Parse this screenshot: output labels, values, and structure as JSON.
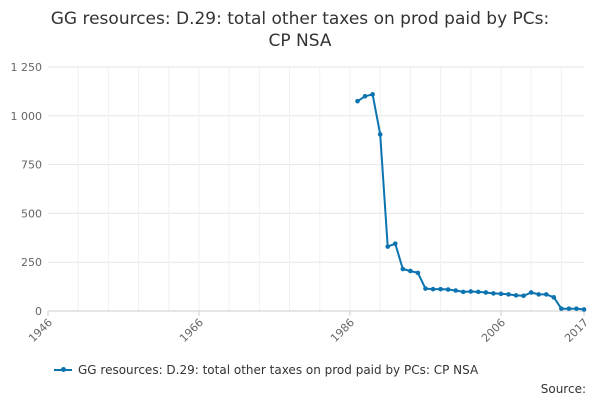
{
  "chart_data": {
    "type": "line",
    "title_line1": "GG resources: D.29: total other taxes on prod paid by PCs:",
    "title_line2": "CP NSA",
    "xlabel": "",
    "ylabel": "",
    "xlim": [
      1946,
      2017
    ],
    "ylim": [
      0,
      1250
    ],
    "x_ticks": [
      1946,
      1966,
      1986,
      2006,
      2017
    ],
    "x_tick_labels": [
      "1946",
      "1966",
      "1986",
      "2006",
      "2017"
    ],
    "y_ticks": [
      0,
      250,
      500,
      750,
      1000,
      1250
    ],
    "y_tick_labels": [
      "0",
      "250",
      "500",
      "750",
      "1 000",
      "1 250"
    ],
    "grid": true,
    "legend_position": "bottom-left",
    "color": "#0b74b0",
    "series": [
      {
        "name": "GG resources: D.29: total other taxes on prod paid by PCs: CP NSA",
        "x": [
          1987,
          1988,
          1989,
          1990,
          1991,
          1992,
          1993,
          1994,
          1995,
          1996,
          1997,
          1998,
          1999,
          2000,
          2001,
          2002,
          2003,
          2004,
          2005,
          2006,
          2007,
          2008,
          2009,
          2010,
          2011,
          2012,
          2013,
          2014,
          2015,
          2016,
          2017
        ],
        "values": [
          1075,
          1100,
          1110,
          905,
          330,
          345,
          215,
          205,
          195,
          115,
          112,
          112,
          110,
          105,
          98,
          100,
          98,
          95,
          90,
          88,
          85,
          80,
          78,
          95,
          85,
          85,
          70,
          12,
          12,
          12,
          8
        ]
      }
    ]
  },
  "source_label": "Source:"
}
